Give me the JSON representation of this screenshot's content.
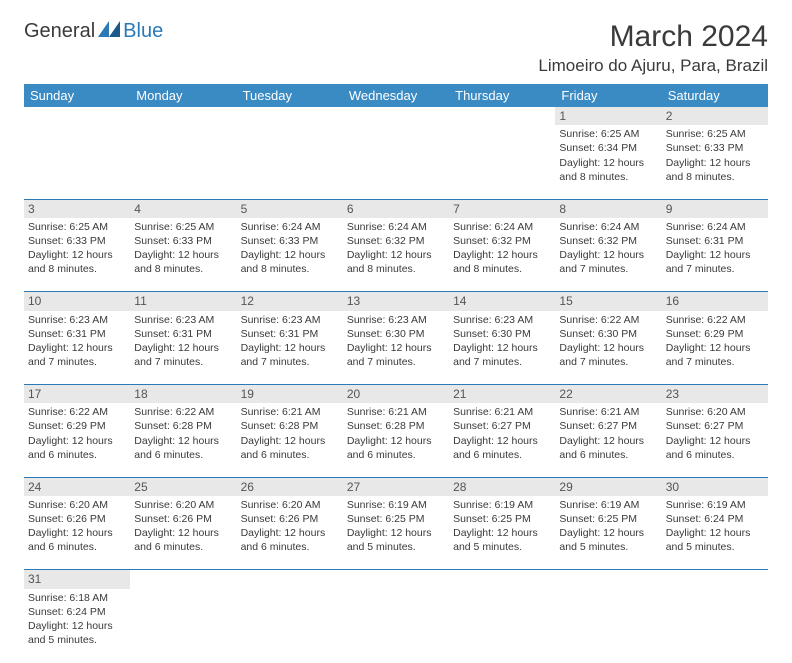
{
  "logo": {
    "text1": "General",
    "text2": "Blue"
  },
  "title": "March 2024",
  "location": "Limoeiro do Ajuru, Para, Brazil",
  "colors": {
    "header_bg": "#3a8ac4",
    "header_fg": "#ffffff",
    "daynum_bg": "#e8e8e8",
    "row_border": "#2a7ab8",
    "text": "#3a3a3a",
    "logo_blue": "#2a7ab8"
  },
  "dayNames": [
    "Sunday",
    "Monday",
    "Tuesday",
    "Wednesday",
    "Thursday",
    "Friday",
    "Saturday"
  ],
  "weeks": [
    [
      null,
      null,
      null,
      null,
      null,
      {
        "n": "1",
        "sr": "6:25 AM",
        "ss": "6:34 PM",
        "dl": "12 hours and 8 minutes."
      },
      {
        "n": "2",
        "sr": "6:25 AM",
        "ss": "6:33 PM",
        "dl": "12 hours and 8 minutes."
      }
    ],
    [
      {
        "n": "3",
        "sr": "6:25 AM",
        "ss": "6:33 PM",
        "dl": "12 hours and 8 minutes."
      },
      {
        "n": "4",
        "sr": "6:25 AM",
        "ss": "6:33 PM",
        "dl": "12 hours and 8 minutes."
      },
      {
        "n": "5",
        "sr": "6:24 AM",
        "ss": "6:33 PM",
        "dl": "12 hours and 8 minutes."
      },
      {
        "n": "6",
        "sr": "6:24 AM",
        "ss": "6:32 PM",
        "dl": "12 hours and 8 minutes."
      },
      {
        "n": "7",
        "sr": "6:24 AM",
        "ss": "6:32 PM",
        "dl": "12 hours and 8 minutes."
      },
      {
        "n": "8",
        "sr": "6:24 AM",
        "ss": "6:32 PM",
        "dl": "12 hours and 7 minutes."
      },
      {
        "n": "9",
        "sr": "6:24 AM",
        "ss": "6:31 PM",
        "dl": "12 hours and 7 minutes."
      }
    ],
    [
      {
        "n": "10",
        "sr": "6:23 AM",
        "ss": "6:31 PM",
        "dl": "12 hours and 7 minutes."
      },
      {
        "n": "11",
        "sr": "6:23 AM",
        "ss": "6:31 PM",
        "dl": "12 hours and 7 minutes."
      },
      {
        "n": "12",
        "sr": "6:23 AM",
        "ss": "6:31 PM",
        "dl": "12 hours and 7 minutes."
      },
      {
        "n": "13",
        "sr": "6:23 AM",
        "ss": "6:30 PM",
        "dl": "12 hours and 7 minutes."
      },
      {
        "n": "14",
        "sr": "6:23 AM",
        "ss": "6:30 PM",
        "dl": "12 hours and 7 minutes."
      },
      {
        "n": "15",
        "sr": "6:22 AM",
        "ss": "6:30 PM",
        "dl": "12 hours and 7 minutes."
      },
      {
        "n": "16",
        "sr": "6:22 AM",
        "ss": "6:29 PM",
        "dl": "12 hours and 7 minutes."
      }
    ],
    [
      {
        "n": "17",
        "sr": "6:22 AM",
        "ss": "6:29 PM",
        "dl": "12 hours and 6 minutes."
      },
      {
        "n": "18",
        "sr": "6:22 AM",
        "ss": "6:28 PM",
        "dl": "12 hours and 6 minutes."
      },
      {
        "n": "19",
        "sr": "6:21 AM",
        "ss": "6:28 PM",
        "dl": "12 hours and 6 minutes."
      },
      {
        "n": "20",
        "sr": "6:21 AM",
        "ss": "6:28 PM",
        "dl": "12 hours and 6 minutes."
      },
      {
        "n": "21",
        "sr": "6:21 AM",
        "ss": "6:27 PM",
        "dl": "12 hours and 6 minutes."
      },
      {
        "n": "22",
        "sr": "6:21 AM",
        "ss": "6:27 PM",
        "dl": "12 hours and 6 minutes."
      },
      {
        "n": "23",
        "sr": "6:20 AM",
        "ss": "6:27 PM",
        "dl": "12 hours and 6 minutes."
      }
    ],
    [
      {
        "n": "24",
        "sr": "6:20 AM",
        "ss": "6:26 PM",
        "dl": "12 hours and 6 minutes."
      },
      {
        "n": "25",
        "sr": "6:20 AM",
        "ss": "6:26 PM",
        "dl": "12 hours and 6 minutes."
      },
      {
        "n": "26",
        "sr": "6:20 AM",
        "ss": "6:26 PM",
        "dl": "12 hours and 6 minutes."
      },
      {
        "n": "27",
        "sr": "6:19 AM",
        "ss": "6:25 PM",
        "dl": "12 hours and 5 minutes."
      },
      {
        "n": "28",
        "sr": "6:19 AM",
        "ss": "6:25 PM",
        "dl": "12 hours and 5 minutes."
      },
      {
        "n": "29",
        "sr": "6:19 AM",
        "ss": "6:25 PM",
        "dl": "12 hours and 5 minutes."
      },
      {
        "n": "30",
        "sr": "6:19 AM",
        "ss": "6:24 PM",
        "dl": "12 hours and 5 minutes."
      }
    ],
    [
      {
        "n": "31",
        "sr": "6:18 AM",
        "ss": "6:24 PM",
        "dl": "12 hours and 5 minutes."
      },
      null,
      null,
      null,
      null,
      null,
      null
    ]
  ],
  "labels": {
    "sunrise": "Sunrise:",
    "sunset": "Sunset:",
    "daylight": "Daylight:"
  }
}
